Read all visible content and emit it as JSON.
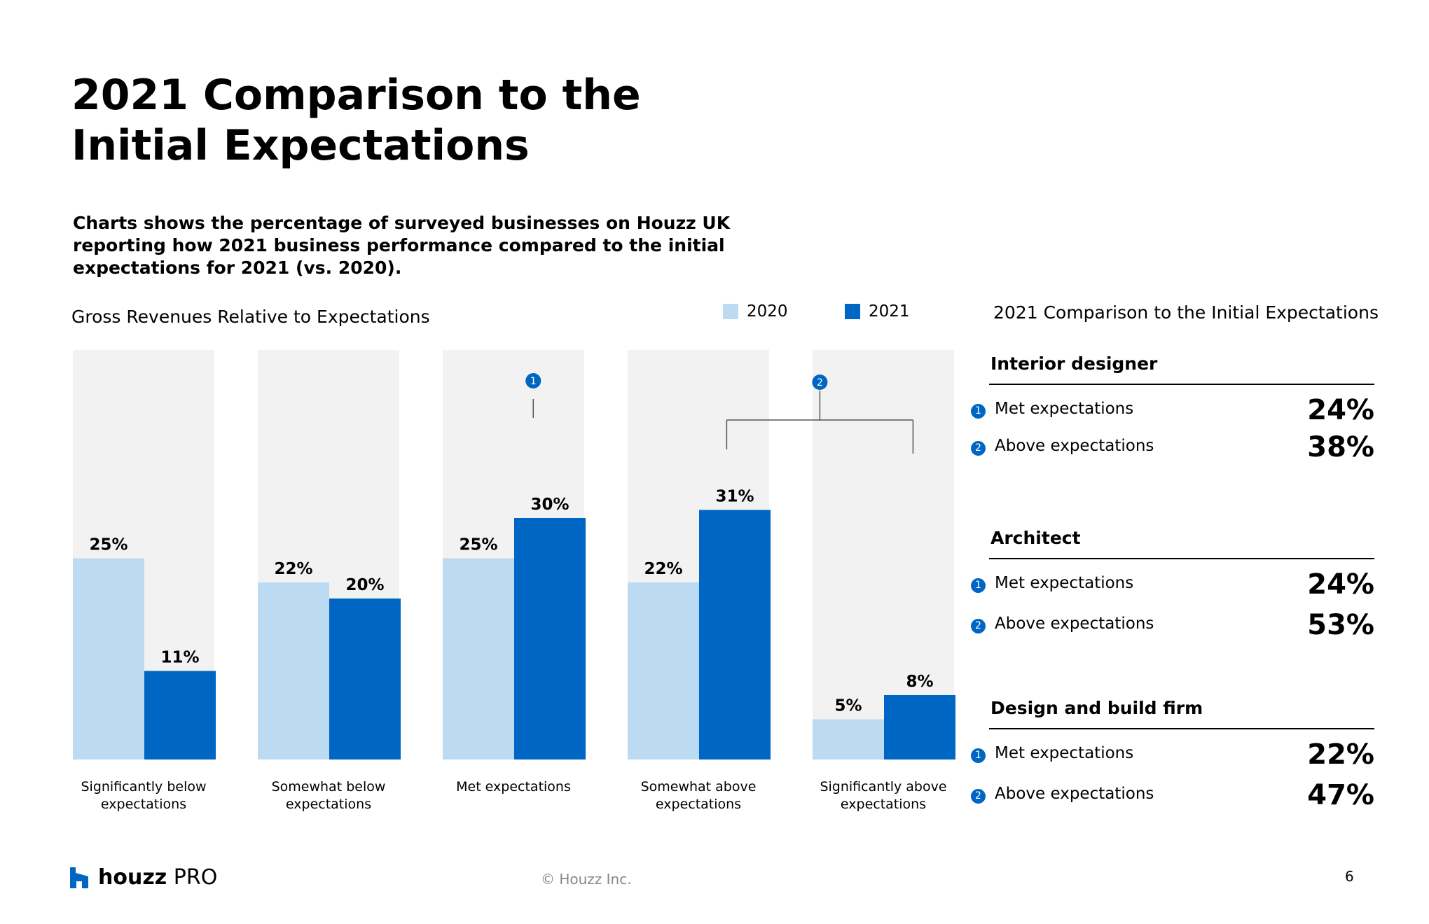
{
  "slide": {
    "title_lines": [
      "2021 Comparison to the",
      "Initial Expectations"
    ],
    "subtitle_lines": [
      "Charts shows the percentage of surveyed businesses on Houzz UK",
      "reporting how 2021 business performance compared to the initial",
      "expectations for 2021 (vs. 2020)."
    ],
    "page_number": "6",
    "copyright": "© Houzz Inc.",
    "logo": {
      "bold": "houzz",
      "light": "PRO"
    }
  },
  "colors": {
    "series_2020": "#bcdaf2",
    "series_2021": "#0066c3",
    "column_bg": "#f2f2f2",
    "badge": "#0066c3"
  },
  "chart_data": {
    "type": "bar",
    "title": "Gross Revenues Relative to Expectations",
    "categories": [
      [
        "Significantly below",
        "expectations"
      ],
      [
        "Somewhat below",
        "expectations"
      ],
      [
        "Met expectations"
      ],
      [
        "Somewhat above",
        "expectations"
      ],
      [
        "Significantly above",
        "expectations"
      ]
    ],
    "series": [
      {
        "name": "2020",
        "values": [
          25,
          22,
          25,
          22,
          5
        ],
        "labels": [
          "25%",
          "22%",
          "25%",
          "22%",
          "5%"
        ]
      },
      {
        "name": "2021",
        "values": [
          11,
          20,
          30,
          31,
          8
        ],
        "labels": [
          "11%",
          "20%",
          "30%",
          "31%",
          "8%"
        ]
      }
    ],
    "ylim": [
      0,
      50
    ],
    "xlabel": "",
    "ylabel": "",
    "legend_position": "top-right",
    "annotations": [
      {
        "marker": "1",
        "spans_categories": [
          2
        ]
      },
      {
        "marker": "2",
        "spans_categories": [
          3,
          4
        ]
      }
    ]
  },
  "panel": {
    "title": "2021 Comparison to the Initial Expectations",
    "groups": [
      {
        "name": "Interior designer",
        "rows": [
          {
            "marker": "1",
            "label": "Met expectations",
            "value": "24%"
          },
          {
            "marker": "2",
            "label": "Above expectations",
            "value": "38%"
          }
        ]
      },
      {
        "name": "Architect",
        "rows": [
          {
            "marker": "1",
            "label": "Met expectations",
            "value": "24%"
          },
          {
            "marker": "2",
            "label": "Above expectations",
            "value": "53%"
          }
        ]
      },
      {
        "name": "Design and build firm",
        "rows": [
          {
            "marker": "1",
            "label": "Met expectations",
            "value": "22%"
          },
          {
            "marker": "2",
            "label": "Above expectations",
            "value": "47%"
          }
        ]
      }
    ]
  }
}
